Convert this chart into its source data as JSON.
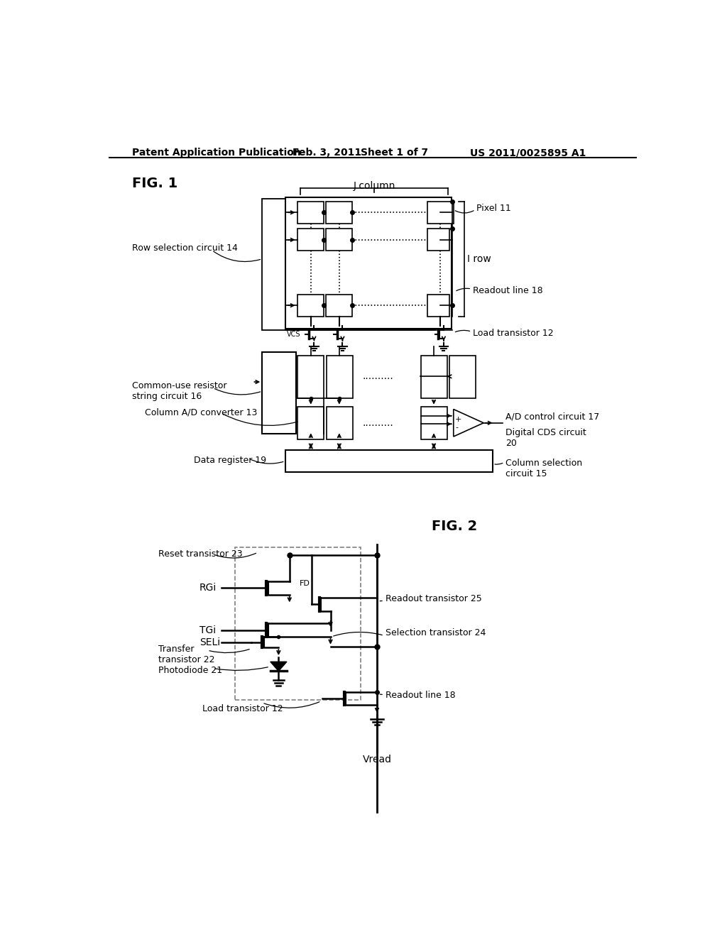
{
  "bg_color": "#ffffff",
  "header_text": "Patent Application Publication",
  "header_date": "Feb. 3, 2011",
  "header_sheet": "Sheet 1 of 7",
  "header_patent": "US 2011/0025895 A1",
  "fig1_label": "FIG. 1",
  "fig2_label": "FIG. 2",
  "j_column_label": "J column",
  "i_row_label": "I row",
  "labels": {
    "pixel11": "Pixel 11",
    "row_sel": "Row selection circuit 14",
    "readout_line": "Readout line 18",
    "load_trans": "Load transistor 12",
    "common_res": "Common-use resistor\nstring circuit 16",
    "col_ad": "Column A/D converter 13",
    "data_reg": "Data register 19",
    "ad_ctrl": "A/D control circuit 17",
    "dig_cds": "Digital CDS circuit\n20",
    "col_sel": "Column selection\ncircuit 15",
    "reset_trans": "Reset transistor 23",
    "readout_trans": "Readout transistor 25",
    "sel_trans": "Selection transistor 24",
    "transfer_trans": "Transfer\ntransistor 22",
    "photodiode": "Photodiode 21",
    "readout_line2": "Readout line 18",
    "load_trans2": "Load transistor 12",
    "vread": "Vread",
    "rgi": "RGi",
    "tgi": "TGi",
    "seli": "SELi",
    "fd": "FD",
    "vcs": "VCS"
  },
  "line_color": "#000000",
  "box_color": "#ffffff",
  "box_edge": "#000000"
}
